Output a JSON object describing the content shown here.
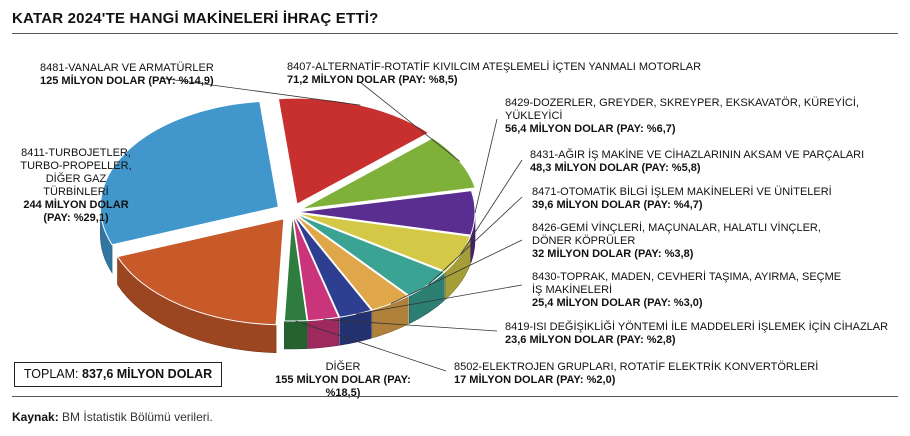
{
  "header": {
    "title": "KATAR 2024'TE HANGİ MAKİNELERİ İHRAÇ ETTİ?"
  },
  "footer": {
    "source_label": "Kaynak:",
    "source_text": "BM İstatistik Bölümü verileri."
  },
  "total": {
    "label": "TOPLAM:",
    "value": "837,6 MİLYON DOLAR"
  },
  "chart_data": {
    "type": "pie",
    "style": "3d-exploded",
    "unit": "MİLYON DOLAR",
    "total": 837.6,
    "slices": [
      {
        "name": "8481-VANALAR VE ARMATÜRLER",
        "value": 125,
        "share": 14.9,
        "value_text": "125 MİLYON DOLAR (PAY: %14,9)",
        "color": "#c8302f"
      },
      {
        "name": "8407-ALTERNATİF-ROTATİF KIVILCIM ATEŞLEMELİ İÇTEN YANMALI MOTORLAR",
        "value": 71.2,
        "share": 8.5,
        "value_text": "71,2 MİLYON DOLAR (PAY: %8,5)",
        "color": "#7fb13a"
      },
      {
        "name": "8429-DOZERLER, GREYDER, SKREYPER, EKSKAVATÖR, KÜREYİCİ, YÜKLEYİCİ",
        "value": 56.4,
        "share": 6.7,
        "value_text": "56,4 MİLYON DOLAR (PAY: %6,7)",
        "color": "#5a2d91"
      },
      {
        "name": "8431-AĞIR İŞ MAKİNE VE CİHAZLARININ AKSAM VE PARÇALARI",
        "value": 48.3,
        "share": 5.8,
        "value_text": "48,3 MİLYON DOLAR (PAY: %5,8)",
        "color": "#d3c946"
      },
      {
        "name": "8471-OTOMATİK BİLGİ İŞLEM MAKİNELERİ VE ÜNİTELERİ",
        "value": 39.6,
        "share": 4.7,
        "value_text": "39,6 MİLYON DOLAR (PAY: %4,7)",
        "color": "#3aa394"
      },
      {
        "name": "8426-GEMİ VİNÇLERİ, MAÇUNALAR, HALATLI VİNÇLER, DÖNER KÖPRÜLER",
        "value": 32,
        "share": 3.8,
        "value_text": "32 MİLYON DOLAR (PAY: %3,8)",
        "color": "#e0a64a"
      },
      {
        "name": "8430-TOPRAK, MADEN, CEVHERİ TAŞIMA, AYIRMA, SEÇME İŞ MAKİNELERİ",
        "value": 25.4,
        "share": 3.0,
        "value_text": "25,4 MİLYON DOLAR (PAY: %3,0)",
        "color": "#2e3f91"
      },
      {
        "name": "8419-ISI DEĞİŞİKLİĞİ YÖNTEMİ İLE MADDELERİ İŞLEMEK İÇİN CİHAZLAR",
        "value": 23.6,
        "share": 2.8,
        "value_text": "23,6 MİLYON DOLAR (PAY: %2,8)",
        "color": "#c9347a"
      },
      {
        "name": "8502-ELEKTROJEN GRUPLARI, ROTATİF ELEKTRİK KONVERTÖRLERİ",
        "value": 17,
        "share": 2.0,
        "value_text": "17 MİLYON DOLAR (PAY: %2,0)",
        "color": "#2f7d3e"
      },
      {
        "name": "DİĞER",
        "value": 155,
        "share": 18.5,
        "value_text": "155 MİLYON DOLAR (PAY: %18,5)",
        "color": "#c85a2a"
      },
      {
        "name": "8411-TURBOJETLER, TURBO-PROPELLER, DİĞER GAZ TÜRBİNLERİ",
        "value": 244,
        "share": 29.1,
        "value_text": "244 MİLYON DOLAR (PAY: %29,1)",
        "color": "#4196cc"
      }
    ]
  }
}
